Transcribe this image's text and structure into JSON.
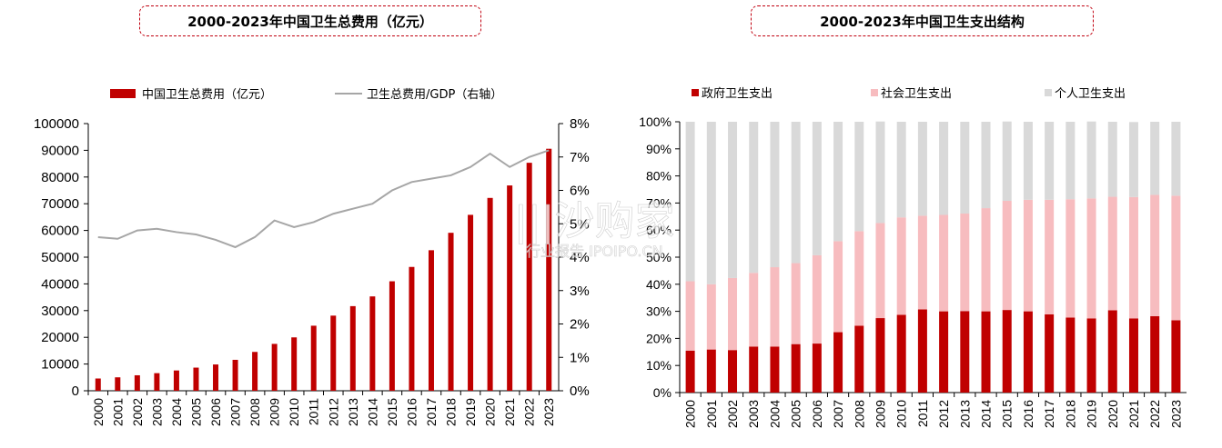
{
  "colors": {
    "accent_red": "#c00000",
    "pink": "#f7bcbf",
    "grey": "#d9d9d9",
    "line_grey": "#a6a6a6",
    "title_border": "#c0000f"
  },
  "watermark": {
    "main": "|||沙购家",
    "sub": "行业报告 IPOIPO.CN"
  },
  "chart_data": [
    {
      "type": "bar",
      "title": "2000-2023年中国卫生总费用（亿元）",
      "categories": [
        "2000",
        "2001",
        "2002",
        "2003",
        "2004",
        "2005",
        "2006",
        "2007",
        "2008",
        "2009",
        "2010",
        "2011",
        "2012",
        "2013",
        "2014",
        "2015",
        "2016",
        "2017",
        "2018",
        "2019",
        "2020",
        "2021",
        "2022",
        "2023"
      ],
      "series": [
        {
          "name": "中国卫生总费用（亿元）",
          "type": "bar",
          "axis": "left",
          "values": [
            4587,
            5026,
            5790,
            6584,
            7590,
            8660,
            9843,
            11574,
            14535,
            17542,
            19980,
            24346,
            28119,
            31669,
            35312,
            40975,
            46345,
            52598,
            59122,
            65841,
            72175,
            76845,
            85327,
            90576
          ]
        },
        {
          "name": "卫生总费用/GDP（右轴）",
          "type": "line",
          "axis": "right",
          "values": [
            4.6,
            4.55,
            4.8,
            4.85,
            4.75,
            4.68,
            4.52,
            4.3,
            4.6,
            5.1,
            4.9,
            5.05,
            5.3,
            5.45,
            5.6,
            6.0,
            6.25,
            6.35,
            6.45,
            6.7,
            7.1,
            6.7,
            7.0,
            7.2
          ]
        }
      ],
      "ylim": [
        0,
        100000
      ],
      "yticks": [
        "0",
        "10000",
        "20000",
        "30000",
        "40000",
        "50000",
        "60000",
        "70000",
        "80000",
        "90000",
        "100000"
      ],
      "y2lim": [
        0,
        8
      ],
      "y2ticks": [
        "0%",
        "1%",
        "2%",
        "3%",
        "4%",
        "5%",
        "6%",
        "7%",
        "8%"
      ],
      "legend_position": "top",
      "grid": false
    },
    {
      "type": "bar",
      "stacked": true,
      "title": "2000-2023年中国卫生支出结构",
      "categories": [
        "2000",
        "2001",
        "2002",
        "2003",
        "2004",
        "2005",
        "2006",
        "2007",
        "2008",
        "2009",
        "2010",
        "2011",
        "2012",
        "2013",
        "2014",
        "2015",
        "2016",
        "2017",
        "2018",
        "2019",
        "2020",
        "2021",
        "2022",
        "2023"
      ],
      "series": [
        {
          "name": "政府卫生支出",
          "values": [
            15.5,
            15.9,
            15.7,
            17.0,
            17.0,
            17.9,
            18.1,
            22.3,
            24.7,
            27.5,
            28.7,
            30.7,
            30.0,
            30.1,
            30.0,
            30.5,
            30.0,
            28.9,
            27.7,
            27.4,
            30.4,
            27.4,
            28.2,
            26.7
          ]
        },
        {
          "name": "社会卫生支出",
          "values": [
            25.6,
            24.1,
            26.6,
            27.2,
            29.3,
            29.9,
            32.6,
            33.6,
            34.9,
            35.1,
            36.0,
            34.6,
            35.6,
            36.0,
            38.1,
            40.3,
            41.2,
            42.3,
            43.7,
            44.3,
            41.9,
            44.8,
            44.8,
            46.0
          ]
        },
        {
          "name": "个人卫生支出",
          "values": [
            58.9,
            60.0,
            57.7,
            55.8,
            53.7,
            52.2,
            49.3,
            44.1,
            40.4,
            37.5,
            35.3,
            34.7,
            34.4,
            33.9,
            31.9,
            29.3,
            28.8,
            28.8,
            28.6,
            28.4,
            27.7,
            27.7,
            27.0,
            27.3
          ]
        }
      ],
      "ylim": [
        0,
        100
      ],
      "yticks": [
        "0%",
        "10%",
        "20%",
        "30%",
        "40%",
        "50%",
        "60%",
        "70%",
        "80%",
        "90%",
        "100%"
      ],
      "legend_position": "top",
      "grid": false
    }
  ]
}
